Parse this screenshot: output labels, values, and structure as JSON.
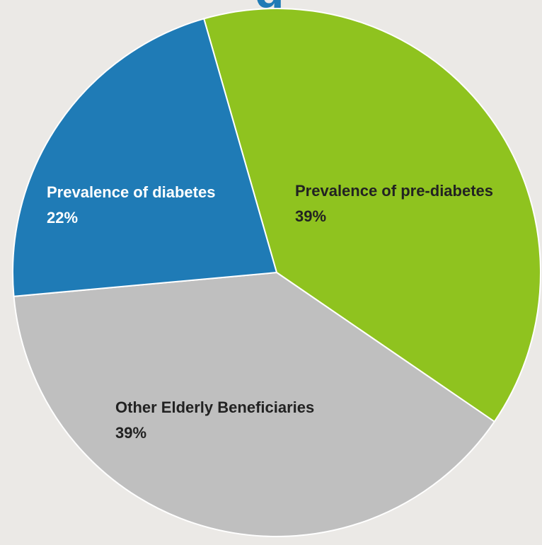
{
  "title_fragment": "g",
  "chart_data": {
    "type": "pie",
    "slices": [
      {
        "label": "Prevalence of pre-diabetes",
        "value": 39,
        "value_label": "39%",
        "color": "#8fc31f",
        "text_color": "#222222"
      },
      {
        "label": "Other Elderly Beneficiaries",
        "value": 39,
        "value_label": "39%",
        "color": "#bfbfbf",
        "text_color": "#222222"
      },
      {
        "label": "Prevalence of diabetes",
        "value": 22,
        "value_label": "22%",
        "color": "#1f7bb6",
        "text_color": "#ffffff"
      }
    ],
    "start_angle_deg": -16,
    "direction": "clockwise",
    "legend": "none",
    "background": "#ebe9e6"
  }
}
